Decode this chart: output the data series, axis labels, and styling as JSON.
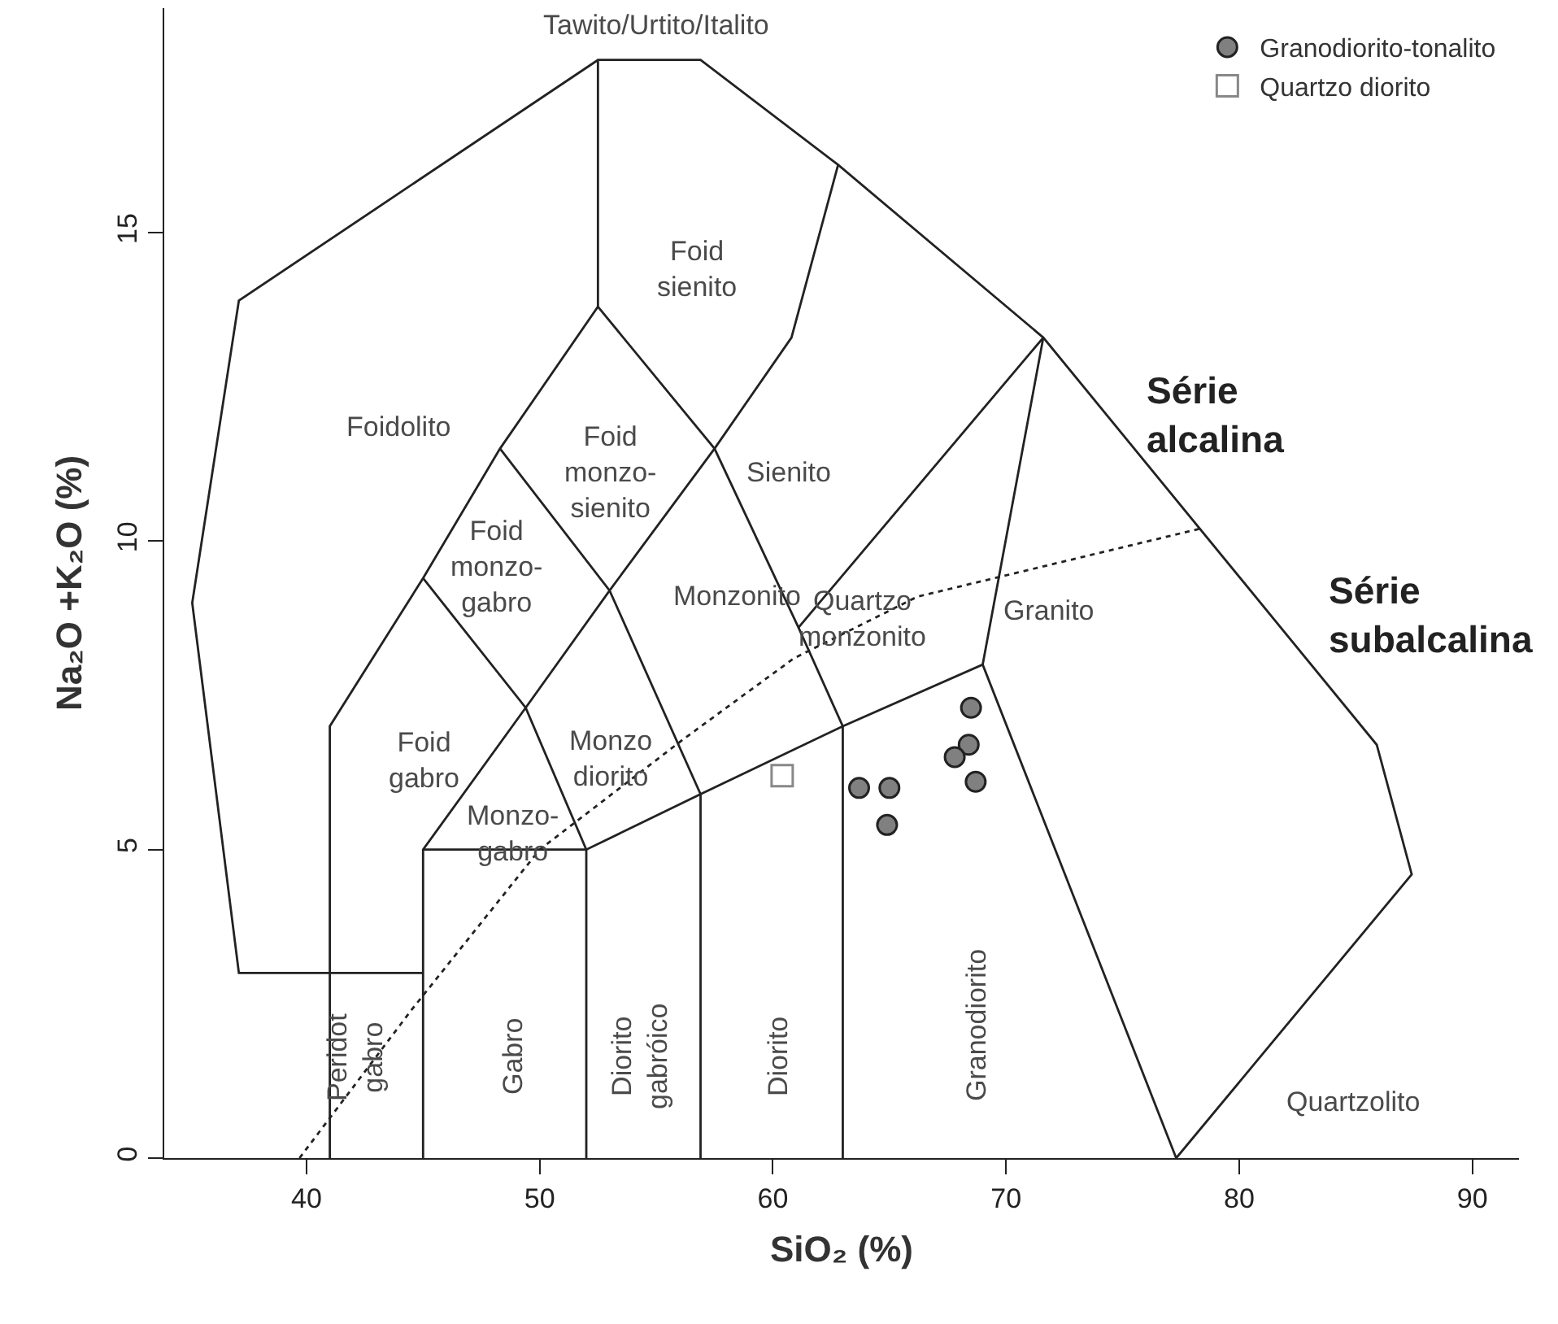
{
  "chart_data": {
    "type": "scatter",
    "xlabel": "SiO₂ (%)",
    "ylabel": "Na₂O +K₂O (%)",
    "xlim": [
      33.9,
      92
    ],
    "ylim": [
      0,
      18.64
    ],
    "xticks": [
      40,
      50,
      60,
      70,
      80,
      90
    ],
    "yticks": [
      0,
      5,
      10,
      15
    ],
    "grid": false,
    "legend": "top right",
    "series": [
      {
        "name": "Granodiorito-tonalito",
        "color": "#808080",
        "marker": "circle",
        "x": [
          68.5,
          68.4,
          67.8,
          68.7,
          63.7,
          65.0,
          64.9
        ],
        "values": [
          7.3,
          6.7,
          6.5,
          6.1,
          6.0,
          6.0,
          5.4
        ]
      },
      {
        "name": "Quartzo diorito",
        "color": "#888888",
        "marker": "square",
        "x": [
          60.4
        ],
        "values": [
          6.2
        ]
      },
      {
        "type": "line",
        "color": "#222222",
        "line_style": "solid",
        "x": [
          41,
          41,
          37.1,
          35.1,
          37.1,
          52.5,
          56.9,
          62.8,
          71.6,
          85.9,
          87.4,
          77.3,
          null,
          41,
          45,
          null,
          41,
          41,
          45,
          48.3,
          52.5,
          52.5,
          null,
          52.5,
          57.5,
          61.1,
          63,
          63,
          null,
          57.5,
          60.8,
          62.8,
          null,
          48.3,
          53,
          56.9,
          56.9,
          null,
          57.5,
          53,
          49.4,
          45,
          45,
          null,
          45,
          49.4,
          52,
          52,
          null,
          45,
          52,
          56.9,
          63,
          69,
          77.3,
          null,
          61.1,
          71.6,
          69
        ],
        "values": [
          0,
          3,
          3,
          9.0,
          13.9,
          17.8,
          17.8,
          16.1,
          13.3,
          6.7,
          4.6,
          0,
          null,
          3,
          3,
          null,
          3,
          7,
          9.4,
          11.5,
          13.8,
          17.8,
          null,
          13.8,
          11.5,
          8.6,
          7.0,
          0,
          null,
          11.5,
          13.3,
          16.1,
          null,
          11.5,
          9.2,
          5.9,
          0,
          null,
          11.5,
          9.2,
          7.3,
          5,
          0,
          null,
          9.4,
          7.3,
          5,
          0,
          null,
          5,
          5,
          5.9,
          7.0,
          8.0,
          0,
          null,
          8.6,
          13.3,
          8.0
        ]
      },
      {
        "type": "line",
        "color": "#222222",
        "line_style": "dotted",
        "x": [
          39.7,
          44.5,
          50,
          56.2,
          60.9,
          66.2,
          78.3
        ],
        "values": [
          0,
          2.4,
          5.0,
          6.8,
          8.1,
          9.1,
          10.2
        ]
      }
    ],
    "annotations": [
      "Tawito/Urtito/Italito",
      "Foid\nsienito",
      "Foidolito",
      "Foid\nmonzo-\nsienito",
      "Sienito",
      "Série\nalcalina",
      "Série\nsubalcalina",
      "Foid\nmonzo-\ngabro",
      "Monzonito",
      "Quartzo\nmonzonito",
      "Granito",
      "Foid\ngabro",
      "Monzo\ndiorito",
      "Monzo-\ngabro",
      "Peridot\ngabro",
      "Gabro",
      "Diorito\ngabróico",
      "Diorito",
      "Granodiorito",
      "Quartzolito"
    ]
  }
}
